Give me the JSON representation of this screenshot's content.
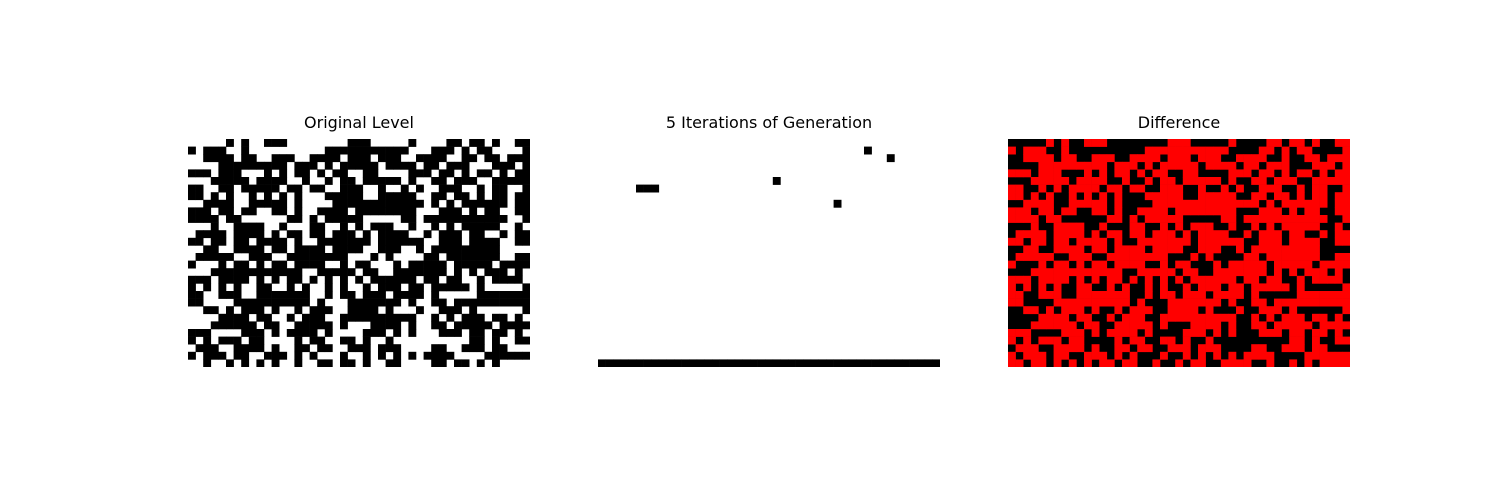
{
  "colors": {
    "wall": "#000000",
    "empty": "#ffffff",
    "different": "#ff0000",
    "same": "#000000"
  },
  "chart_data": [
    {
      "type": "heatmap",
      "title": "Original Level",
      "rows": 30,
      "cols": 45,
      "colormap": {
        "0": "#ffffff",
        "1": "#000000"
      },
      "grid": [
        "000001010011100000000111000001000011011010011",
        "101110010000000000111111111110001110101100001",
        "001111011001110011110111011100111100110110111",
        "000011111111101110101111101111011011100011101",
        "111011100010101101011001100001110110101101011",
        "000111110111100100101101111101001101110011111",
        "110011011111011011001110010010100111001011001",
        "110101001010101000111110011111001101101011011",
        "001111001111101000011111111111101010111111011",
        "111011011001101001111011111111000111010110011",
        "111101100000011010111110000011011111111111001",
        "000100111100100011001010111001001010111110010",
        "011110111101011011011101011110010111011001011",
        "110110110111101001111111011111100111011110011",
        "001100111101101111011110011100101111111110000",
        "011111001110011111111000101000011011111110011",
        "100010110101101111001011000101111101111101111",
        "000111111111111001111101100111111101010111010",
        "111011110101011010101010111111011011001011110",
        "101010100110010100101001011101101111101000001",
        "110011100111111100101101110111101000001111111",
        "110000111111111101000111111101001101111111111",
        "001101011101001011100111101000100111010000001",
        "000011110110010111001111111111001010111011010",
        "000111111011001111101000111101001101111101111",
        "111000011101011110100001110101000111011011010",
        "101011101100001011001101001000000000011010011",
        "011100111101001101100111011100001100111011000",
        "101110110011101010001001010101011110000111111",
        "001001010101001001101101001100001101101010000"
      ]
    },
    {
      "type": "heatmap",
      "title": "5 Iterations of Generation",
      "rows": 30,
      "cols": 45,
      "colormap": {
        "0": "#ffffff",
        "1": "#000000"
      },
      "grid": [
        "000000000000000000000000000000000000000000000",
        "000000000000000000000000000000000001000000000",
        "000000000000000000000000000000000000001000000",
        "000000000000000000000000000000000000000000000",
        "000000000000000000000000000000000000000000000",
        "000000000000000000000001000000000000000000000",
        "000001110000000000000000000000000000000000000",
        "000000000000000000000000000000000000000000000",
        "000000000000000000000000000000010000000000000",
        "000000000000000000000000000000000000000000000",
        "000000000000000000000000000000000000000000000",
        "000000000000000000000000000000000000000000000",
        "000000000000000000000000000000000000000000000",
        "000000000000000000000000000000000000000000000",
        "000000000000000000000000000000000000000000000",
        "000000000000000000000000000000000000000000000",
        "000000000000000000000000000000000000000000000",
        "000000000000000000000000000000000000000000000",
        "000000000000000000000000000000000000000000000",
        "000000000000000000000000000000000000000000000",
        "000000000000000000000000000000000000000000000",
        "000000000000000000000000000000000000000000000",
        "000000000000000000000000000000000000000000000",
        "000000000000000000000000000000000000000000000",
        "000000000000000000000000000000000000000000000",
        "000000000000000000000000000000000000000000000",
        "000000000000000000000000000000000000000000000",
        "000000000000000000000000000000000000000000000",
        "000000000000000000000000000000000000000000000",
        "111111111111111111111111111111111111111111111"
      ]
    },
    {
      "type": "heatmap",
      "title": "Difference",
      "rows": 30,
      "cols": 45,
      "colormap": {
        "0": "#000000",
        "1": "#ff0000"
      },
      "grid": [
        "000001010011100000000111000001000011011010011",
        "101110010000000000111111111110000110101100001",
        "001111011001110011110111011100111100100110111",
        "000011111111101110101111101111011011100011101",
        "111011100010101101011001100001110110101101011",
        "000111110111100100101101111101001101110011111",
        "110010101111011011001110010010100111001011001",
        "110101001010101000111110011111001101101011011",
        "001111001111101000011111111111111010111111011",
        "111011011001101001111011111111000111010110011",
        "111101100000011010111110000011011111111111001",
        "000100111100100011001010111001001010111110010",
        "011110111101011011011101011110010111011001011",
        "110110110111101001111111011111100111011110011",
        "001100111101101111011110011100101111111110000",
        "011111001110011111111000101000011011111110011",
        "100010110101101111001011000101111101111101111",
        "000111111111111001111101100111111101010111010",
        "111011110101011010101010111111011011001011110",
        "101010100110010100101001011101101111101000001",
        "110011100111111100101101110111101000001111111",
        "110000111111111101000111111101001101111111111",
        "001101011101001011100111101000100111010000001",
        "000011110110010111001111111111001010111011010",
        "000111111011001111101000111101001101111101111",
        "111000011101011110100001110101000111011011010",
        "101011101100001011001101001000000000011010011",
        "011100111101001101100111011100001100111011000",
        "101110110011101010001001010101011110000111111",
        "110110101010110110010010110011110010010101111"
      ]
    }
  ]
}
